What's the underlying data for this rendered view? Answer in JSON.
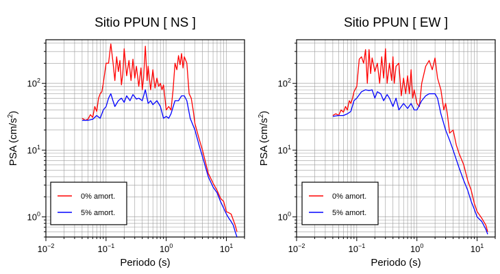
{
  "chart_data": [
    {
      "type": "line",
      "title": "Sitio PPUN [ NS ]",
      "xlabel": "Periodo (s)",
      "ylabel_base": "PSA (cm/s",
      "ylabel_exp": "2",
      "ylabel_close": ")",
      "x_scale": "log",
      "y_scale": "log",
      "xlim": [
        0.01,
        20
      ],
      "ylim": [
        0.5,
        450
      ],
      "x_ticks": [
        {
          "value": 0.01,
          "base": "10",
          "exp": "−2"
        },
        {
          "value": 0.1,
          "base": "10",
          "exp": "−1"
        },
        {
          "value": 1,
          "base": "10",
          "exp": "0"
        },
        {
          "value": 10,
          "base": "10",
          "exp": "1"
        }
      ],
      "y_ticks": [
        {
          "value": 1,
          "base": "10",
          "exp": "0"
        },
        {
          "value": 10,
          "base": "10",
          "exp": "1"
        },
        {
          "value": 100,
          "base": "10",
          "exp": "2"
        }
      ],
      "grid": true,
      "legend_position": "bottom-left",
      "series": [
        {
          "name": "0% amort.",
          "color": "#ff0000",
          "points": [
            [
              0.04,
              30
            ],
            [
              0.045,
              28
            ],
            [
              0.05,
              29
            ],
            [
              0.055,
              34
            ],
            [
              0.06,
              31
            ],
            [
              0.065,
              45
            ],
            [
              0.07,
              38
            ],
            [
              0.075,
              60
            ],
            [
              0.08,
              70
            ],
            [
              0.085,
              75
            ],
            [
              0.09,
              100
            ],
            [
              0.1,
              200
            ],
            [
              0.11,
              200
            ],
            [
              0.12,
              390
            ],
            [
              0.13,
              210
            ],
            [
              0.14,
              110
            ],
            [
              0.15,
              250
            ],
            [
              0.16,
              150
            ],
            [
              0.17,
              220
            ],
            [
              0.18,
              95
            ],
            [
              0.19,
              140
            ],
            [
              0.2,
              330
            ],
            [
              0.22,
              130
            ],
            [
              0.24,
              220
            ],
            [
              0.26,
              110
            ],
            [
              0.28,
              230
            ],
            [
              0.3,
              120
            ],
            [
              0.32,
              180
            ],
            [
              0.35,
              90
            ],
            [
              0.38,
              170
            ],
            [
              0.4,
              80
            ],
            [
              0.42,
              120
            ],
            [
              0.45,
              360
            ],
            [
              0.48,
              110
            ],
            [
              0.5,
              180
            ],
            [
              0.55,
              80
            ],
            [
              0.6,
              160
            ],
            [
              0.65,
              85
            ],
            [
              0.7,
              120
            ],
            [
              0.75,
              90
            ],
            [
              0.8,
              100
            ],
            [
              0.85,
              80
            ],
            [
              0.9,
              95
            ],
            [
              1.0,
              40
            ],
            [
              1.1,
              45
            ],
            [
              1.2,
              40
            ],
            [
              1.3,
              80
            ],
            [
              1.4,
              200
            ],
            [
              1.5,
              160
            ],
            [
              1.6,
              260
            ],
            [
              1.7,
              190
            ],
            [
              1.8,
              280
            ],
            [
              1.9,
              170
            ],
            [
              2.0,
              250
            ],
            [
              2.2,
              200
            ],
            [
              2.4,
              70
            ],
            [
              2.6,
              60
            ],
            [
              2.8,
              40
            ],
            [
              3.0,
              25
            ],
            [
              3.5,
              15
            ],
            [
              4,
              10
            ],
            [
              5,
              4.5
            ],
            [
              6,
              3.2
            ],
            [
              7,
              2.5
            ],
            [
              8,
              1.9
            ],
            [
              9,
              1.7
            ],
            [
              10,
              1.2
            ],
            [
              11,
              1.15
            ],
            [
              12,
              1.1
            ],
            [
              13,
              0.9
            ],
            [
              14,
              0.75
            ],
            [
              15,
              0.6
            ]
          ]
        },
        {
          "name": "5% amort.",
          "color": "#0000ff",
          "points": [
            [
              0.04,
              28
            ],
            [
              0.05,
              28
            ],
            [
              0.06,
              29
            ],
            [
              0.07,
              33
            ],
            [
              0.08,
              30
            ],
            [
              0.09,
              40
            ],
            [
              0.1,
              45
            ],
            [
              0.11,
              60
            ],
            [
              0.12,
              70
            ],
            [
              0.13,
              55
            ],
            [
              0.14,
              45
            ],
            [
              0.16,
              55
            ],
            [
              0.18,
              60
            ],
            [
              0.2,
              52
            ],
            [
              0.22,
              65
            ],
            [
              0.25,
              55
            ],
            [
              0.28,
              68
            ],
            [
              0.32,
              58
            ],
            [
              0.35,
              60
            ],
            [
              0.4,
              55
            ],
            [
              0.45,
              80
            ],
            [
              0.5,
              50
            ],
            [
              0.55,
              55
            ],
            [
              0.6,
              48
            ],
            [
              0.7,
              55
            ],
            [
              0.8,
              45
            ],
            [
              0.9,
              30
            ],
            [
              1.0,
              32
            ],
            [
              1.1,
              30
            ],
            [
              1.2,
              35
            ],
            [
              1.4,
              55
            ],
            [
              1.6,
              55
            ],
            [
              1.8,
              65
            ],
            [
              2.0,
              65
            ],
            [
              2.2,
              55
            ],
            [
              2.5,
              30
            ],
            [
              3,
              20
            ],
            [
              3.5,
              12
            ],
            [
              4,
              8
            ],
            [
              5,
              4
            ],
            [
              6,
              2.8
            ],
            [
              7,
              2.3
            ],
            [
              8,
              1.7
            ],
            [
              9,
              1.35
            ],
            [
              10,
              1.1
            ],
            [
              11,
              0.95
            ],
            [
              12,
              0.85
            ],
            [
              13,
              0.75
            ],
            [
              14,
              0.6
            ],
            [
              15,
              0.5
            ]
          ]
        }
      ]
    },
    {
      "type": "line",
      "title": "Sitio PPUN [ EW ]",
      "xlabel": "Periodo (s)",
      "ylabel_base": "PSA (cm/s",
      "ylabel_exp": "2",
      "ylabel_close": ")",
      "x_scale": "log",
      "y_scale": "log",
      "xlim": [
        0.01,
        20
      ],
      "ylim": [
        0.5,
        450
      ],
      "x_ticks": [
        {
          "value": 0.01,
          "base": "10",
          "exp": "−2"
        },
        {
          "value": 0.1,
          "base": "10",
          "exp": "−1"
        },
        {
          "value": 1,
          "base": "10",
          "exp": "0"
        },
        {
          "value": 10,
          "base": "10",
          "exp": "1"
        }
      ],
      "y_ticks": [
        {
          "value": 1,
          "base": "10",
          "exp": "0"
        },
        {
          "value": 10,
          "base": "10",
          "exp": "1"
        },
        {
          "value": 100,
          "base": "10",
          "exp": "2"
        }
      ],
      "grid": true,
      "legend_position": "bottom-left",
      "series": [
        {
          "name": "0% amort.",
          "color": "#ff0000",
          "points": [
            [
              0.04,
              33
            ],
            [
              0.045,
              35
            ],
            [
              0.05,
              33
            ],
            [
              0.055,
              40
            ],
            [
              0.06,
              37
            ],
            [
              0.065,
              45
            ],
            [
              0.07,
              40
            ],
            [
              0.075,
              55
            ],
            [
              0.08,
              50
            ],
            [
              0.085,
              60
            ],
            [
              0.09,
              75
            ],
            [
              0.1,
              90
            ],
            [
              0.11,
              230
            ],
            [
              0.12,
              250
            ],
            [
              0.13,
              200
            ],
            [
              0.14,
              320
            ],
            [
              0.15,
              100
            ],
            [
              0.16,
              320
            ],
            [
              0.17,
              140
            ],
            [
              0.18,
              240
            ],
            [
              0.2,
              150
            ],
            [
              0.22,
              200
            ],
            [
              0.24,
              100
            ],
            [
              0.26,
              250
            ],
            [
              0.28,
              120
            ],
            [
              0.3,
              330
            ],
            [
              0.32,
              100
            ],
            [
              0.35,
              200
            ],
            [
              0.38,
              110
            ],
            [
              0.4,
              250
            ],
            [
              0.42,
              100
            ],
            [
              0.45,
              180
            ],
            [
              0.5,
              200
            ],
            [
              0.55,
              65
            ],
            [
              0.6,
              120
            ],
            [
              0.65,
              70
            ],
            [
              0.7,
              130
            ],
            [
              0.75,
              70
            ],
            [
              0.8,
              160
            ],
            [
              0.85,
              60
            ],
            [
              0.9,
              80
            ],
            [
              1.0,
              50
            ],
            [
              1.1,
              45
            ],
            [
              1.2,
              100
            ],
            [
              1.4,
              180
            ],
            [
              1.6,
              220
            ],
            [
              1.8,
              160
            ],
            [
              2.0,
              240
            ],
            [
              2.2,
              120
            ],
            [
              2.5,
              80
            ],
            [
              2.8,
              40
            ],
            [
              3.0,
              50
            ],
            [
              3.2,
              35
            ],
            [
              3.5,
              18
            ],
            [
              4,
              20
            ],
            [
              4.5,
              12
            ],
            [
              5,
              9
            ],
            [
              6,
              6
            ],
            [
              7,
              3.5
            ],
            [
              8,
              2.5
            ],
            [
              9,
              1.6
            ],
            [
              10,
              1.2
            ],
            [
              12,
              0.95
            ],
            [
              14,
              0.75
            ],
            [
              15,
              0.6
            ]
          ]
        },
        {
          "name": "5% amort.",
          "color": "#0000ff",
          "points": [
            [
              0.04,
              32
            ],
            [
              0.05,
              33
            ],
            [
              0.06,
              33
            ],
            [
              0.07,
              35
            ],
            [
              0.08,
              38
            ],
            [
              0.09,
              55
            ],
            [
              0.1,
              60
            ],
            [
              0.12,
              75
            ],
            [
              0.14,
              80
            ],
            [
              0.16,
              78
            ],
            [
              0.18,
              80
            ],
            [
              0.2,
              60
            ],
            [
              0.22,
              75
            ],
            [
              0.25,
              70
            ],
            [
              0.28,
              55
            ],
            [
              0.32,
              68
            ],
            [
              0.35,
              60
            ],
            [
              0.4,
              45
            ],
            [
              0.45,
              60
            ],
            [
              0.5,
              40
            ],
            [
              0.55,
              45
            ],
            [
              0.6,
              50
            ],
            [
              0.7,
              42
            ],
            [
              0.8,
              50
            ],
            [
              0.9,
              40
            ],
            [
              1.0,
              40
            ],
            [
              1.2,
              55
            ],
            [
              1.4,
              65
            ],
            [
              1.6,
              70
            ],
            [
              1.8,
              70
            ],
            [
              2.0,
              70
            ],
            [
              2.2,
              60
            ],
            [
              2.5,
              35
            ],
            [
              3,
              20
            ],
            [
              3.5,
              14
            ],
            [
              4,
              10
            ],
            [
              5,
              5.5
            ],
            [
              6,
              3.5
            ],
            [
              7,
              2.5
            ],
            [
              8,
              1.7
            ],
            [
              9,
              1.3
            ],
            [
              10,
              1.0
            ],
            [
              12,
              0.85
            ],
            [
              14,
              0.65
            ],
            [
              15,
              0.55
            ]
          ]
        }
      ]
    }
  ]
}
